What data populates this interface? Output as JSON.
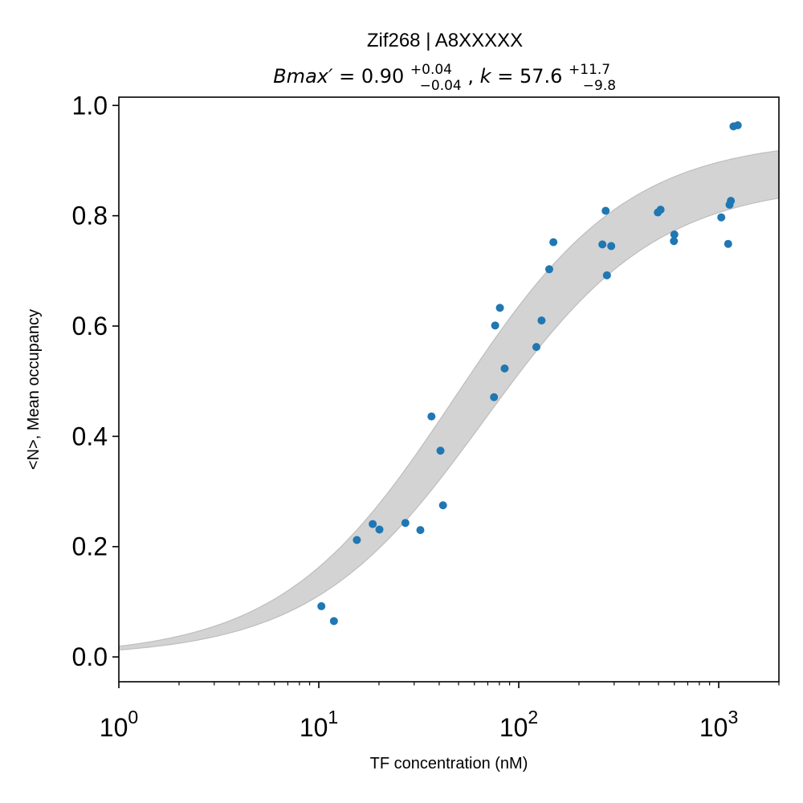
{
  "chart_data": {
    "type": "scatter",
    "title": "Zif268 | A8XXXXX",
    "subtitle": "Bmax′ = 0.90+0.04−0.04, k = 57.6+11.7−9.8",
    "subtitle_parts": {
      "bmax_label": "Bmax′",
      "bmax_value": "0.90",
      "bmax_plus": "+0.04",
      "bmax_minus": "−0.04",
      "k_label": "k",
      "k_value": "57.6",
      "k_plus": "+11.7",
      "k_minus": "−9.8"
    },
    "xlabel": "TF concentration (nM)",
    "ylabel": "<N>, Mean occupancy",
    "x_scale": "log",
    "xlim": [
      1,
      2000
    ],
    "ylim": [
      -0.045,
      1.015
    ],
    "x_ticks": [
      {
        "value": 1,
        "base": "10",
        "exp": "0"
      },
      {
        "value": 10,
        "base": "10",
        "exp": "1"
      },
      {
        "value": 100,
        "base": "10",
        "exp": "2"
      },
      {
        "value": 1000,
        "base": "10",
        "exp": "3"
      }
    ],
    "y_ticks": [
      {
        "value": 0.0,
        "label": "0.0"
      },
      {
        "value": 0.2,
        "label": "0.2"
      },
      {
        "value": 0.4,
        "label": "0.4"
      },
      {
        "value": 0.6,
        "label": "0.6"
      },
      {
        "value": 0.8,
        "label": "0.8"
      },
      {
        "value": 1.0,
        "label": "1.0"
      }
    ],
    "grid": false,
    "point_color": "#1f77b4",
    "band_color": "#d3d3d3",
    "band_edge_color": "#bdbdbd",
    "band": {
      "lower": {
        "bmax": 0.86,
        "k": 67.4
      },
      "upper": {
        "bmax": 0.94,
        "k": 47.8
      }
    },
    "points": [
      {
        "x": 10.3,
        "y": 0.092
      },
      {
        "x": 11.9,
        "y": 0.065
      },
      {
        "x": 15.5,
        "y": 0.212
      },
      {
        "x": 18.6,
        "y": 0.241
      },
      {
        "x": 20.1,
        "y": 0.231
      },
      {
        "x": 27.1,
        "y": 0.243
      },
      {
        "x": 32.2,
        "y": 0.23
      },
      {
        "x": 36.6,
        "y": 0.436
      },
      {
        "x": 40.6,
        "y": 0.374
      },
      {
        "x": 41.8,
        "y": 0.275
      },
      {
        "x": 75.2,
        "y": 0.471
      },
      {
        "x": 76.2,
        "y": 0.601
      },
      {
        "x": 80.5,
        "y": 0.633
      },
      {
        "x": 85.0,
        "y": 0.523
      },
      {
        "x": 122.5,
        "y": 0.562
      },
      {
        "x": 130.0,
        "y": 0.61
      },
      {
        "x": 142.0,
        "y": 0.703
      },
      {
        "x": 149.0,
        "y": 0.752
      },
      {
        "x": 262.0,
        "y": 0.748
      },
      {
        "x": 272.0,
        "y": 0.809
      },
      {
        "x": 276.0,
        "y": 0.692
      },
      {
        "x": 290.0,
        "y": 0.745
      },
      {
        "x": 496.0,
        "y": 0.806
      },
      {
        "x": 512.0,
        "y": 0.811
      },
      {
        "x": 597.0,
        "y": 0.754
      },
      {
        "x": 600.0,
        "y": 0.766
      },
      {
        "x": 1030.0,
        "y": 0.797
      },
      {
        "x": 1115.0,
        "y": 0.749
      },
      {
        "x": 1133.0,
        "y": 0.82
      },
      {
        "x": 1150.0,
        "y": 0.827
      },
      {
        "x": 1185.0,
        "y": 0.962
      },
      {
        "x": 1245.0,
        "y": 0.964
      }
    ]
  }
}
